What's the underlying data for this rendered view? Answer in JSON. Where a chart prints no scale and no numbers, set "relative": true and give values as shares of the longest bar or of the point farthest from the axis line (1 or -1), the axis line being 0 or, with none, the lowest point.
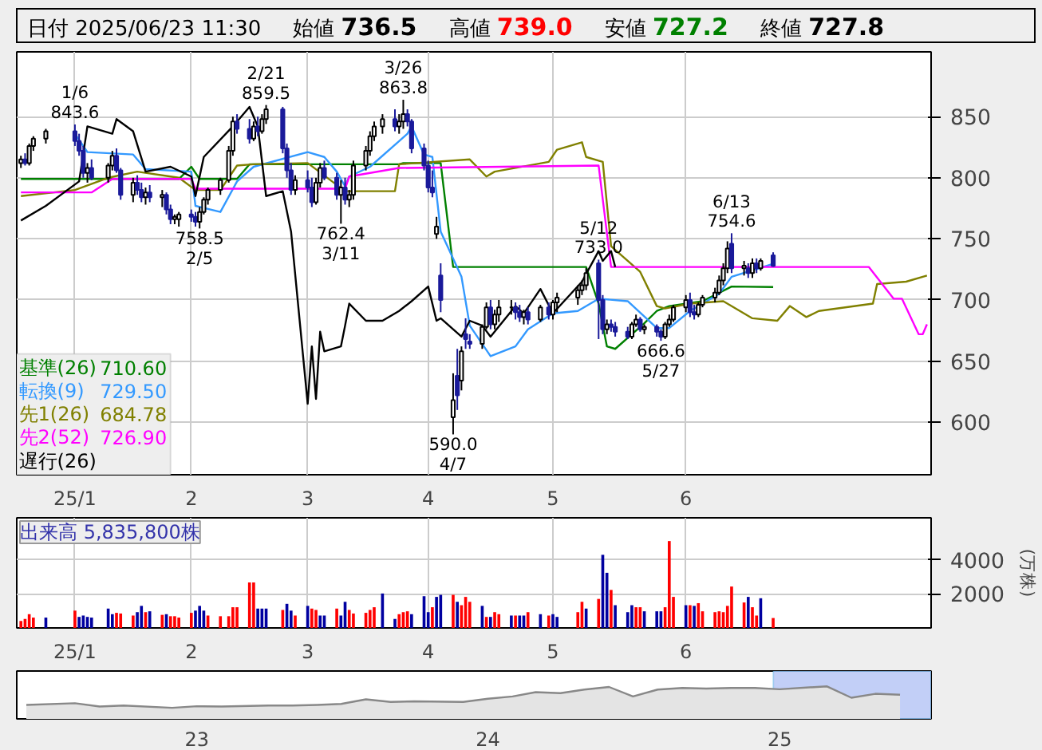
{
  "chart_data": [
    {
      "type": "candlestick",
      "title": "日付 2025/06/23 11:30",
      "annotations": [
        "始値 736.5",
        "高値 739.0",
        "安値 727.2",
        "終値 727.8",
        "710.60",
        "729.50",
        "684.78",
        "726.90",
        {
          "text": "1/6\n843.6",
          "x": "2025-01-06",
          "y": 843.6
        },
        {
          "text": "758.5\n2/5",
          "x": "2025-02-05",
          "y": 758.5
        },
        {
          "text": "2/21\n859.5",
          "x": "2025-02-21",
          "y": 859.5
        },
        {
          "text": "762.4\n3/11",
          "x": "2025-03-11",
          "y": 762.4
        },
        {
          "text": "3/26\n863.8",
          "x": "2025-03-26",
          "y": 863.8
        },
        {
          "text": "590.0\n4/7",
          "x": "2025-04-07",
          "y": 590.0
        },
        {
          "text": "5/12\n733.0",
          "x": "2025-05-12",
          "y": 733.0
        },
        {
          "text": "666.6\n5/27",
          "x": "2025-05-27",
          "y": 666.6
        },
        {
          "text": "6/13\n754.6",
          "x": "2025-06-13",
          "y": 754.6
        }
      ],
      "x": [
        "2024-12-24",
        "2024-12-25",
        "2024-12-26",
        "2024-12-27",
        "2024-12-30",
        "2025-01-06",
        "2025-01-07",
        "2025-01-08",
        "2025-01-09",
        "2025-01-10",
        "2025-01-14",
        "2025-01-15",
        "2025-01-16",
        "2025-01-17",
        "2025-01-20",
        "2025-01-21",
        "2025-01-22",
        "2025-01-23",
        "2025-01-24",
        "2025-01-27",
        "2025-01-28",
        "2025-01-29",
        "2025-01-30",
        "2025-01-31",
        "2025-02-03",
        "2025-02-04",
        "2025-02-05",
        "2025-02-06",
        "2025-02-07",
        "2025-02-10",
        "2025-02-12",
        "2025-02-13",
        "2025-02-14",
        "2025-02-17",
        "2025-02-18",
        "2025-02-19",
        "2025-02-20",
        "2025-02-21",
        "2025-02-25",
        "2025-02-26",
        "2025-02-27",
        "2025-02-28",
        "2025-03-03",
        "2025-03-04",
        "2025-03-05",
        "2025-03-06",
        "2025-03-07",
        "2025-03-10",
        "2025-03-11",
        "2025-03-12",
        "2025-03-13",
        "2025-03-14",
        "2025-03-17",
        "2025-03-18",
        "2025-03-19",
        "2025-03-21",
        "2025-03-24",
        "2025-03-25",
        "2025-03-26",
        "2025-03-27",
        "2025-03-28",
        "2025-03-31",
        "2025-04-01",
        "2025-04-02",
        "2025-04-03",
        "2025-04-04",
        "2025-04-07",
        "2025-04-08",
        "2025-04-09",
        "2025-04-10",
        "2025-04-11",
        "2025-04-14",
        "2025-04-15",
        "2025-04-16",
        "2025-04-17",
        "2025-04-18",
        "2025-04-21",
        "2025-04-22",
        "2025-04-23",
        "2025-04-24",
        "2025-04-25",
        "2025-04-28",
        "2025-04-30",
        "2025-05-01",
        "2025-05-02",
        "2025-05-07",
        "2025-05-08",
        "2025-05-09",
        "2025-05-12",
        "2025-05-13",
        "2025-05-14",
        "2025-05-15",
        "2025-05-16",
        "2025-05-19",
        "2025-05-20",
        "2025-05-21",
        "2025-05-22",
        "2025-05-23",
        "2025-05-26",
        "2025-05-27",
        "2025-05-28",
        "2025-05-29",
        "2025-05-30",
        "2025-06-02",
        "2025-06-03",
        "2025-06-04",
        "2025-06-05",
        "2025-06-06",
        "2025-06-09",
        "2025-06-10",
        "2025-06-11",
        "2025-06-12",
        "2025-06-13",
        "2025-06-16",
        "2025-06-17",
        "2025-06-18",
        "2025-06-19",
        "2025-06-20",
        "2025-06-23"
      ],
      "ohlc": [
        [
          812,
          818,
          808,
          815
        ],
        [
          815,
          820,
          810,
          812
        ],
        [
          812,
          828,
          810,
          826
        ],
        [
          826,
          834,
          822,
          832
        ],
        [
          832,
          840,
          828,
          838
        ],
        [
          838,
          843.6,
          826,
          830
        ],
        [
          830,
          836,
          818,
          822
        ],
        [
          822,
          826,
          800,
          804
        ],
        [
          804,
          812,
          796,
          808
        ],
        [
          808,
          815,
          798,
          800
        ],
        [
          800,
          812,
          796,
          810
        ],
        [
          810,
          822,
          806,
          818
        ],
        [
          818,
          824,
          804,
          806
        ],
        [
          806,
          808,
          782,
          786
        ],
        [
          786,
          800,
          780,
          796
        ],
        [
          796,
          802,
          786,
          790
        ],
        [
          790,
          796,
          780,
          784
        ],
        [
          784,
          792,
          778,
          788
        ],
        [
          788,
          794,
          780,
          784
        ],
        [
          784,
          790,
          776,
          786
        ],
        [
          786,
          788,
          770,
          774
        ],
        [
          774,
          778,
          762,
          766
        ],
        [
          766,
          770,
          762,
          768
        ],
        [
          766,
          772,
          760,
          770
        ],
        [
          770,
          774,
          764,
          768
        ],
        [
          768,
          772,
          760,
          764
        ],
        [
          764,
          776,
          758.5,
          772
        ],
        [
          772,
          784,
          770,
          782
        ],
        [
          782,
          792,
          778,
          790
        ],
        [
          790,
          800,
          786,
          798
        ],
        [
          798,
          826,
          796,
          822
        ],
        [
          822,
          850,
          818,
          846
        ],
        [
          846,
          852,
          836,
          840
        ],
        [
          840,
          848,
          828,
          832
        ],
        [
          832,
          846,
          830,
          842
        ],
        [
          842,
          850,
          834,
          838
        ],
        [
          838,
          852,
          836,
          848
        ],
        [
          848,
          859.5,
          844,
          856
        ],
        [
          856,
          858,
          820,
          824
        ],
        [
          824,
          828,
          800,
          806
        ],
        [
          806,
          812,
          786,
          790
        ],
        [
          790,
          802,
          786,
          798
        ],
        [
          798,
          806,
          788,
          792
        ],
        [
          792,
          800,
          776,
          780
        ],
        [
          780,
          800,
          778,
          796
        ],
        [
          796,
          812,
          792,
          808
        ],
        [
          808,
          814,
          798,
          800
        ],
        [
          800,
          804,
          782,
          786
        ],
        [
          786,
          798,
          762.4,
          792
        ],
        [
          792,
          800,
          778,
          782
        ],
        [
          782,
          790,
          776,
          786
        ],
        [
          786,
          814,
          782,
          810
        ],
        [
          810,
          826,
          806,
          822
        ],
        [
          822,
          838,
          818,
          834
        ],
        [
          834,
          846,
          830,
          842
        ],
        [
          842,
          852,
          836,
          848
        ],
        [
          848,
          856,
          838,
          842
        ],
        [
          842,
          852,
          836,
          846
        ],
        [
          846,
          863.8,
          840,
          852
        ],
        [
          852,
          856,
          842,
          846
        ],
        [
          846,
          848,
          820,
          824
        ],
        [
          824,
          828,
          806,
          810
        ],
        [
          810,
          814,
          788,
          792
        ],
        [
          792,
          806,
          784,
          788
        ],
        [
          754,
          768,
          750,
          760
        ],
        [
          720,
          730,
          690,
          700
        ],
        [
          604,
          640,
          590.0,
          618
        ],
        [
          638,
          660,
          610,
          622
        ],
        [
          634,
          662,
          626,
          658
        ],
        [
          672,
          685,
          660,
          668
        ],
        [
          666,
          672,
          660,
          664
        ],
        [
          664,
          680,
          660,
          678
        ],
        [
          678,
          698,
          676,
          694
        ],
        [
          694,
          700,
          676,
          680
        ],
        [
          680,
          692,
          676,
          688
        ],
        [
          688,
          700,
          682,
          694
        ],
        [
          694,
          700,
          688,
          694
        ],
        [
          694,
          698,
          684,
          690
        ],
        [
          690,
          696,
          682,
          686
        ],
        [
          686,
          692,
          680,
          690
        ],
        [
          690,
          694,
          680,
          684
        ],
        [
          684,
          696,
          682,
          694
        ],
        [
          694,
          698,
          684,
          688
        ],
        [
          688,
          700,
          684,
          698
        ],
        [
          698,
          706,
          690,
          702
        ],
        [
          702,
          712,
          696,
          708
        ],
        [
          708,
          716,
          704,
          712
        ],
        [
          712,
          726,
          708,
          722
        ],
        [
          730,
          733.0,
          668,
          700
        ],
        [
          700,
          704,
          672,
          676
        ],
        [
          676,
          684,
          672,
          680
        ],
        [
          680,
          684,
          674,
          678
        ],
        [
          678,
          682,
          670,
          674
        ],
        [
          674,
          678,
          668,
          670
        ],
        [
          670,
          682,
          668,
          680
        ],
        [
          680,
          688,
          678,
          684
        ],
        [
          684,
          686,
          674,
          676
        ],
        [
          676,
          680,
          672,
          678
        ],
        [
          678,
          680,
          670,
          674
        ],
        [
          674,
          676,
          666.6,
          670
        ],
        [
          670,
          682,
          668,
          680
        ],
        [
          680,
          688,
          678,
          684
        ],
        [
          684,
          696,
          682,
          694
        ],
        [
          694,
          704,
          690,
          700
        ],
        [
          700,
          706,
          686,
          690
        ],
        [
          690,
          696,
          684,
          688
        ],
        [
          688,
          698,
          686,
          696
        ],
        [
          696,
          704,
          694,
          702
        ],
        [
          702,
          710,
          698,
          706
        ],
        [
          706,
          720,
          704,
          716
        ],
        [
          716,
          730,
          712,
          726
        ],
        [
          726,
          748,
          722,
          742
        ],
        [
          746,
          754.6,
          722,
          726
        ],
        [
          726,
          732,
          720,
          728
        ],
        [
          726,
          730,
          718,
          722
        ],
        [
          722,
          734,
          718,
          730
        ],
        [
          730,
          734,
          722,
          726
        ],
        [
          726,
          734,
          724,
          732
        ],
        [
          736.5,
          739.0,
          727.2,
          727.8
        ]
      ],
      "series": [
        {
          "name": "基準(26)",
          "type": "line",
          "color": "#008000",
          "x": [
            "2024-12-24",
            "2025-01-31",
            "2025-02-03",
            "2025-02-05",
            "2025-02-14",
            "2025-02-17",
            "2025-03-25",
            "2025-03-26",
            "2025-04-04",
            "2025-04-07",
            "2025-05-09",
            "2025-05-12",
            "2025-05-14",
            "2025-05-16",
            "2025-05-23",
            "2025-05-26",
            "2025-05-29",
            "2025-06-06",
            "2025-06-13",
            "2025-06-23"
          ],
          "values": [
            799,
            799,
            809,
            799,
            799,
            811,
            811,
            812,
            812,
            727,
            727,
            697,
            662,
            660,
            681,
            691,
            695,
            699,
            711,
            710.6
          ]
        },
        {
          "name": "転換(9)",
          "type": "line",
          "color": "#3399ff",
          "x": [
            "2025-01-06",
            "2025-01-09",
            "2025-01-20",
            "2025-01-23",
            "2025-02-03",
            "2025-02-04",
            "2025-02-10",
            "2025-02-14",
            "2025-02-18",
            "2025-03-03",
            "2025-03-07",
            "2025-03-10",
            "2025-03-12",
            "2025-03-13",
            "2025-03-18",
            "2025-03-25",
            "2025-03-27",
            "2025-03-28",
            "2025-03-31",
            "2025-04-02",
            "2025-04-04",
            "2025-04-09",
            "2025-04-11",
            "2025-04-16",
            "2025-04-22",
            "2025-04-25",
            "2025-05-01",
            "2025-05-07",
            "2025-05-12",
            "2025-05-19",
            "2025-05-26",
            "2025-05-29",
            "2025-06-03",
            "2025-06-10",
            "2025-06-13",
            "2025-06-23"
          ],
          "values": [
            836,
            821,
            819,
            807,
            805,
            777,
            772,
            797,
            809,
            821,
            817,
            805,
            793,
            801,
            809,
            830,
            836,
            842,
            819,
            817,
            756,
            719,
            679,
            654,
            662,
            676,
            689,
            691,
            701,
            699,
            677,
            677,
            691,
            705,
            719,
            729.5
          ]
        },
        {
          "name": "先1(26)",
          "type": "line",
          "color": "#808000",
          "x": [
            "2024-12-24",
            "2025-01-06",
            "2025-01-14",
            "2025-01-21",
            "2025-01-31",
            "2025-02-04",
            "2025-02-10",
            "2025-02-14",
            "2025-02-18",
            "2025-03-03",
            "2025-03-12",
            "2025-03-24",
            "2025-03-25",
            "2025-04-11",
            "2025-04-15",
            "2025-04-17",
            "2025-04-30",
            "2025-05-02",
            "2025-05-08",
            "2025-05-09",
            "2025-05-13",
            "2025-05-15",
            "2025-05-19",
            "2025-05-22",
            "2025-05-26",
            "2025-05-28",
            "2025-06-03",
            "2025-06-11",
            "2025-06-18",
            "2025-06-24",
            "2025-06-27",
            "2025-07-01",
            "2025-07-04",
            "2025-07-17",
            "2025-07-18",
            "2025-07-25",
            "2025-07-30"
          ],
          "values": [
            785,
            790,
            800,
            805,
            800,
            790,
            790,
            810,
            811,
            812,
            789,
            789,
            811,
            815,
            801,
            805,
            813,
            823,
            829,
            817,
            813,
            744,
            732,
            723,
            695,
            693,
            697,
            699,
            685,
            683,
            695,
            686,
            691,
            697,
            713,
            715,
            720
          ]
        },
        {
          "name": "先2(52)",
          "type": "line",
          "color": "#ff00ff",
          "x": [
            "2024-12-24",
            "2025-01-10",
            "2025-01-15",
            "2025-02-03",
            "2025-02-04",
            "2025-03-12",
            "2025-03-13",
            "2025-03-25",
            "2025-05-12",
            "2025-05-15",
            "2025-07-16",
            "2025-07-22",
            "2025-07-24",
            "2025-07-28",
            "2025-07-29",
            "2025-07-30"
          ],
          "values": [
            788,
            788,
            799,
            799,
            791,
            791,
            801,
            808,
            810,
            727,
            727,
            701,
            701,
            672,
            672,
            680
          ]
        },
        {
          "name": "遅行(26)",
          "type": "line",
          "color": "#000000",
          "x": [
            "2024-12-24",
            "2024-12-30",
            "2025-01-07",
            "2025-01-09",
            "2025-01-15",
            "2025-01-16",
            "2025-01-20",
            "2025-01-23",
            "2025-01-29",
            "2025-02-03",
            "2025-02-04",
            "2025-02-06",
            "2025-02-13",
            "2025-02-17",
            "2025-02-19",
            "2025-02-21",
            "2025-02-25",
            "2025-02-27",
            "2025-03-03",
            "2025-03-04",
            "2025-03-05",
            "2025-03-06",
            "2025-03-07",
            "2025-03-11",
            "2025-03-12",
            "2025-03-13",
            "2025-03-17",
            "2025-03-21",
            "2025-03-25",
            "2025-03-28",
            "2025-04-01",
            "2025-04-03",
            "2025-04-04",
            "2025-04-09",
            "2025-04-11",
            "2025-04-14",
            "2025-04-16",
            "2025-04-22",
            "2025-04-24",
            "2025-04-28",
            "2025-05-01",
            "2025-05-08",
            "2025-05-12",
            "2025-05-13",
            "2025-05-15",
            "2025-05-16"
          ],
          "values": [
            765,
            777,
            797,
            842,
            836,
            848,
            838,
            805,
            809,
            801,
            785,
            817,
            842,
            858,
            842,
            785,
            789,
            756,
            615,
            662,
            619,
            674,
            658,
            662,
            679,
            697,
            683,
            683,
            691,
            699,
            711,
            683,
            685,
            670,
            683,
            679,
            670,
            695,
            689,
            709,
            689,
            715,
            740,
            732,
            740,
            727
          ]
        }
      ],
      "xlim": [
        "2024-12-23",
        "2025-07-31"
      ],
      "ylim": [
        557,
        903
      ],
      "xticks": [
        {
          "value": "2025-01-06",
          "label": "25/1"
        },
        {
          "value": "2025-02-03",
          "label": "2"
        },
        {
          "value": "2025-03-03",
          "label": "3"
        },
        {
          "value": "2025-04-01",
          "label": "4"
        },
        {
          "value": "2025-05-01",
          "label": "5"
        },
        {
          "value": "2025-06-02",
          "label": "6"
        }
      ],
      "yticks": [
        600,
        650,
        700,
        750,
        800,
        850
      ],
      "grid": true,
      "legend": "bottom left"
    },
    {
      "type": "bar",
      "title": "出来高 5,835,800株",
      "ylabel": "(万株)",
      "x": [
        "2024-12-24",
        "2024-12-25",
        "2024-12-26",
        "2024-12-27",
        "2024-12-30",
        "2025-01-06",
        "2025-01-07",
        "2025-01-08",
        "2025-01-09",
        "2025-01-10",
        "2025-01-14",
        "2025-01-15",
        "2025-01-16",
        "2025-01-17",
        "2025-01-20",
        "2025-01-21",
        "2025-01-22",
        "2025-01-23",
        "2025-01-24",
        "2025-01-27",
        "2025-01-28",
        "2025-01-29",
        "2025-01-30",
        "2025-01-31",
        "2025-02-03",
        "2025-02-04",
        "2025-02-05",
        "2025-02-06",
        "2025-02-07",
        "2025-02-10",
        "2025-02-12",
        "2025-02-13",
        "2025-02-14",
        "2025-02-17",
        "2025-02-18",
        "2025-02-19",
        "2025-02-20",
        "2025-02-21",
        "2025-02-25",
        "2025-02-26",
        "2025-02-27",
        "2025-02-28",
        "2025-03-03",
        "2025-03-04",
        "2025-03-05",
        "2025-03-06",
        "2025-03-07",
        "2025-03-10",
        "2025-03-11",
        "2025-03-12",
        "2025-03-13",
        "2025-03-14",
        "2025-03-17",
        "2025-03-18",
        "2025-03-19",
        "2025-03-21",
        "2025-03-24",
        "2025-03-25",
        "2025-03-26",
        "2025-03-27",
        "2025-03-28",
        "2025-03-31",
        "2025-04-01",
        "2025-04-02",
        "2025-04-03",
        "2025-04-04",
        "2025-04-07",
        "2025-04-08",
        "2025-04-09",
        "2025-04-10",
        "2025-04-11",
        "2025-04-14",
        "2025-04-15",
        "2025-04-16",
        "2025-04-17",
        "2025-04-18",
        "2025-04-21",
        "2025-04-22",
        "2025-04-23",
        "2025-04-24",
        "2025-04-25",
        "2025-04-28",
        "2025-04-30",
        "2025-05-01",
        "2025-05-02",
        "2025-05-07",
        "2025-05-08",
        "2025-05-09",
        "2025-05-12",
        "2025-05-13",
        "2025-05-14",
        "2025-05-15",
        "2025-05-16",
        "2025-05-19",
        "2025-05-20",
        "2025-05-21",
        "2025-05-22",
        "2025-05-23",
        "2025-05-26",
        "2025-05-27",
        "2025-05-28",
        "2025-05-29",
        "2025-05-30",
        "2025-06-02",
        "2025-06-03",
        "2025-06-04",
        "2025-06-05",
        "2025-06-06",
        "2025-06-09",
        "2025-06-10",
        "2025-06-11",
        "2025-06-12",
        "2025-06-13",
        "2025-06-16",
        "2025-06-17",
        "2025-06-18",
        "2025-06-19",
        "2025-06-20",
        "2025-06-23"
      ],
      "values": [
        410,
        530,
        810,
        610,
        610,
        1020,
        650,
        730,
        650,
        610,
        1140,
        810,
        890,
        850,
        730,
        930,
        1300,
        930,
        980,
        770,
        810,
        690,
        690,
        610,
        890,
        1020,
        1300,
        1020,
        730,
        690,
        690,
        1220,
        1220,
        2680,
        2680,
        1140,
        1140,
        1140,
        1060,
        1420,
        1020,
        730,
        1300,
        1140,
        1060,
        730,
        730,
        1140,
        730,
        1540,
        1060,
        850,
        890,
        1060,
        1220,
        2030,
        530,
        810,
        930,
        980,
        810,
        1870,
        930,
        1220,
        1830,
        1950,
        1950,
        1540,
        1340,
        1830,
        1540,
        1300,
        650,
        650,
        930,
        810,
        730,
        730,
        730,
        730,
        930,
        810,
        730,
        810,
        650,
        930,
        1540,
        1140,
        1710,
        4310,
        3250,
        2240,
        1340,
        930,
        1340,
        1220,
        1220,
        980,
        980,
        980,
        1220,
        5120,
        1830,
        1340,
        1340,
        1300,
        1460,
        980,
        930,
        980,
        930,
        1300,
        2440,
        1500,
        1830,
        1220,
        730,
        1750,
        583.58
      ],
      "colors": [
        "#ff0000",
        "#ff0000",
        "#ff0000",
        "#ff0000",
        "#0000a0",
        "#ff0000",
        "#0000a0",
        "#0000a0",
        "#0000a0",
        "#0000a0",
        "#0000a0",
        "#0000a0",
        "#ff0000",
        "#ff0000",
        "#ff0000",
        "#0000a0",
        "#0000a0",
        "#ff0000",
        "#0000a0",
        "#ff0000",
        "#0000a0",
        "#ff0000",
        "#ff0000",
        "#ff0000",
        "#ff0000",
        "#0000a0",
        "#0000a0",
        "#0000a0",
        "#ff0000",
        "#ff0000",
        "#ff0000",
        "#ff0000",
        "#ff0000",
        "#ff0000",
        "#ff0000",
        "#0000a0",
        "#0000a0",
        "#0000a0",
        "#ff0000",
        "#0000a0",
        "#0000a0",
        "#ff0000",
        "#0000a0",
        "#ff0000",
        "#ff0000",
        "#0000a0",
        "#0000a0",
        "#ff0000",
        "#0000a0",
        "#0000a0",
        "#ff0000",
        "#ff0000",
        "#ff0000",
        "#ff0000",
        "#ff0000",
        "#0000a0",
        "#0000a0",
        "#ff0000",
        "#ff0000",
        "#ff0000",
        "#0000a0",
        "#0000a0",
        "#0000a0",
        "#ff0000",
        "#0000a0",
        "#0000a0",
        "#ff0000",
        "#0000a0",
        "#ff0000",
        "#ff0000",
        "#ff0000",
        "#0000a0",
        "#ff0000",
        "#0000a0",
        "#ff0000",
        "#ff0000",
        "#0000a0",
        "#ff0000",
        "#0000a0",
        "#0000a0",
        "#ff0000",
        "#0000a0",
        "#ff0000",
        "#0000a0",
        "#0000a0",
        "#ff0000",
        "#ff0000",
        "#0000a0",
        "#ff0000",
        "#0000a0",
        "#0000a0",
        "#ff0000",
        "#0000a0",
        "#0000a0",
        "#0000a0",
        "#ff0000",
        "#ff0000",
        "#0000a0",
        "#0000a0",
        "#0000a0",
        "#ff0000",
        "#ff0000",
        "#ff0000",
        "#0000a0",
        "#ff0000",
        "#0000a0",
        "#ff0000",
        "#ff0000",
        "#ff0000",
        "#ff0000",
        "#ff0000",
        "#ff0000",
        "#ff0000",
        "#ff0000",
        "#0000a0",
        "#ff0000",
        "#ff0000",
        "#0000a0",
        "#ff0000"
      ],
      "xlim": [
        "2024-12-23",
        "2025-07-31"
      ],
      "ylim": [
        0,
        6490
      ],
      "xticks": [
        {
          "value": "2025-01-06",
          "label": "25/1"
        },
        {
          "value": "2025-02-03",
          "label": "2"
        },
        {
          "value": "2025-03-03",
          "label": "3"
        },
        {
          "value": "2025-04-01",
          "label": "4"
        },
        {
          "value": "2025-05-01",
          "label": "5"
        },
        {
          "value": "2025-06-02",
          "label": "6"
        }
      ],
      "yticks": [
        2000,
        4000
      ],
      "grid": true
    },
    {
      "type": "area",
      "relative": true,
      "tick_labels": "x",
      "x": [
        "2022-06",
        "2022-08",
        "2022-09",
        "2022-10",
        "2022-12",
        "2023-01",
        "2023-02",
        "2023-04",
        "2023-05",
        "2023-06",
        "2023-07",
        "2023-08",
        "2023-09",
        "2023-10",
        "2023-12",
        "2024-01",
        "2024-02",
        "2024-03",
        "2024-04",
        "2024-05",
        "2024-06",
        "2024-07",
        "2024-08",
        "2024-09",
        "2024-10",
        "2024-11",
        "2024-12",
        "2025-01",
        "2025-03",
        "2025-04",
        "2025-05",
        "2025-06"
      ],
      "values": [
        0.43,
        0.48,
        0.38,
        0.41,
        0.34,
        0.39,
        0.38,
        0.41,
        0.41,
        0.43,
        0.46,
        0.6,
        0.52,
        0.54,
        0.52,
        0.62,
        0.69,
        0.82,
        0.79,
        0.9,
        0.98,
        0.69,
        0.9,
        0.95,
        0.93,
        0.95,
        0.95,
        0.91,
        1,
        0.65,
        0.77,
        0.74
      ],
      "color": "#888888",
      "xlim": [
        "2022-05-20",
        "2025-07-10"
      ],
      "xticks": [
        {
          "value": "2023",
          "label": "23"
        },
        {
          "value": "2024",
          "label": "24"
        },
        {
          "value": "2025",
          "label": "25"
        }
      ],
      "bands": [
        {
          "axis": "x",
          "from": "2024-12-24",
          "to": "2025-07-10",
          "color": "#b3c3f5"
        }
      ]
    }
  ]
}
